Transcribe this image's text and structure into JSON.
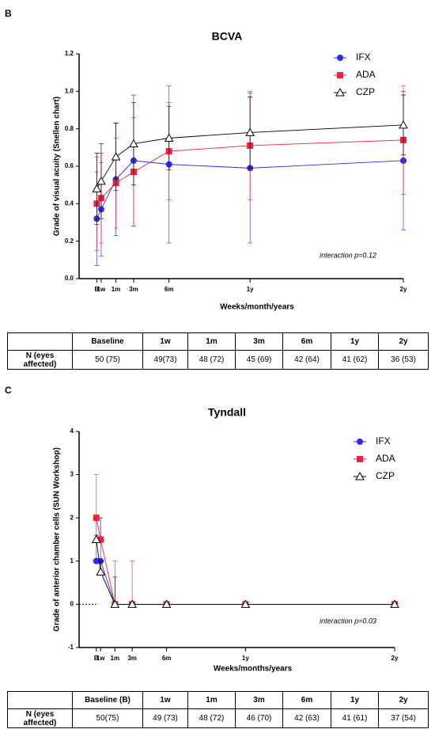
{
  "panel_labels": [
    "B",
    "C"
  ],
  "chart_data": [
    {
      "type": "line",
      "title": "BCVA",
      "x_label": "Weeks/month/years",
      "y_label": "Grade of visual acuity (Snellen chart)",
      "x": [
        0,
        1.5,
        6.5,
        12.5,
        24.5,
        52,
        104
      ],
      "xlim": [
        -6,
        104
      ],
      "xticks": [
        {
          "value": 0,
          "label": "B"
        },
        {
          "value": 1.5,
          "label": "1w"
        },
        {
          "value": 6.5,
          "label": "1m"
        },
        {
          "value": 12.5,
          "label": "3m"
        },
        {
          "value": 24.5,
          "label": "6m"
        },
        {
          "value": 52,
          "label": "1y"
        },
        {
          "value": 104,
          "label": "2y"
        }
      ],
      "ylim": [
        0,
        1.2
      ],
      "yticks": [
        {
          "value": 0,
          "label": "0.0"
        },
        {
          "value": 0.2,
          "label": "0.2"
        },
        {
          "value": 0.4,
          "label": "0.4"
        },
        {
          "value": 0.6,
          "label": "0.6"
        },
        {
          "value": 0.8,
          "label": "0.8"
        },
        {
          "value": 1,
          "label": "1.0"
        },
        {
          "value": 1.2,
          "label": "1.2"
        }
      ],
      "error_bars": "both",
      "legend": "upper right",
      "annotation": "interaction p=0.12",
      "series": [
        {
          "name": "IFX",
          "color": "#2b2bf0",
          "marker": "circle",
          "values": [
            0.32,
            0.37,
            0.53,
            0.63,
            0.61,
            0.59,
            0.63
          ],
          "errors": [
            0.25,
            0.25,
            0.3,
            0.35,
            0.42,
            0.4,
            0.37
          ]
        },
        {
          "name": "ADA",
          "color": "#f0213c",
          "marker": "square",
          "values": [
            0.4,
            0.43,
            0.51,
            0.57,
            0.68,
            0.71,
            0.74
          ],
          "errors": [
            0.25,
            0.24,
            0.24,
            0.29,
            0.26,
            0.29,
            0.29
          ]
        },
        {
          "name": "CZP",
          "color": "#000000",
          "marker": "triangle",
          "values": [
            0.48,
            0.52,
            0.65,
            0.72,
            0.75,
            0.78,
            0.82
          ],
          "errors": [
            0.19,
            0.2,
            0.18,
            0.22,
            0.17,
            0.19,
            0.16
          ]
        }
      ]
    },
    {
      "type": "line",
      "title": "Tyndall",
      "x_label": "Weeks/months/years",
      "y_label": "Grade of anterior chamber cells (SUN Workshop)",
      "x": [
        0,
        1.5,
        6.5,
        12.5,
        24.5,
        52,
        104
      ],
      "xlim": [
        -6,
        104
      ],
      "xticks": [
        {
          "value": 0,
          "label": "B"
        },
        {
          "value": 1.5,
          "label": "1w"
        },
        {
          "value": 6.5,
          "label": "1m"
        },
        {
          "value": 12.5,
          "label": "3m"
        },
        {
          "value": 24.5,
          "label": "6m"
        },
        {
          "value": 52,
          "label": "1y"
        },
        {
          "value": 104,
          "label": "2y"
        }
      ],
      "ylim": [
        -1,
        4
      ],
      "yticks": [
        -1,
        0,
        1,
        2,
        3,
        4
      ],
      "error_bars": "up",
      "legend": "upper right",
      "zero_line": true,
      "annotation": "interaction p=0.03",
      "series": [
        {
          "name": "IFX",
          "color": "#2b2bf0",
          "marker": "circle",
          "values": [
            1,
            1,
            0,
            0,
            0,
            0,
            0
          ],
          "errors": [
            1,
            1,
            0,
            0,
            0,
            0,
            0
          ]
        },
        {
          "name": "ADA",
          "color": "#f0213c",
          "marker": "square",
          "values": [
            2,
            1.5,
            0,
            0,
            0,
            0,
            0
          ],
          "errors": [
            1,
            0.5,
            1,
            1,
            0,
            0,
            0
          ]
        },
        {
          "name": "CZP",
          "color": "#000000",
          "marker": "triangle",
          "values": [
            1.5,
            0.75,
            0,
            0,
            0,
            0,
            0
          ],
          "errors": [
            0.1,
            0.25,
            0.63,
            0,
            0,
            0,
            0
          ]
        }
      ]
    }
  ],
  "tables": [
    {
      "row_label": "N (eyes affected)",
      "columns": [
        "Baseline",
        "1w",
        "1m",
        "3m",
        "6m",
        "1y",
        "2y"
      ],
      "values": [
        "50 (75)",
        "49(73)",
        "48 (72)",
        "45 (69)",
        "42 (64)",
        "41 (62)",
        "36 (53)"
      ]
    },
    {
      "row_label": "N (eyes affected)",
      "columns": [
        "Baseline (B)",
        "1w",
        "1m",
        "3m",
        "6m",
        "1y",
        "2y"
      ],
      "values": [
        "50(75)",
        "49 (73)",
        "48 (72)",
        "46 (70)",
        "42 (63)",
        "41 (61)",
        "37 (54)"
      ]
    }
  ]
}
